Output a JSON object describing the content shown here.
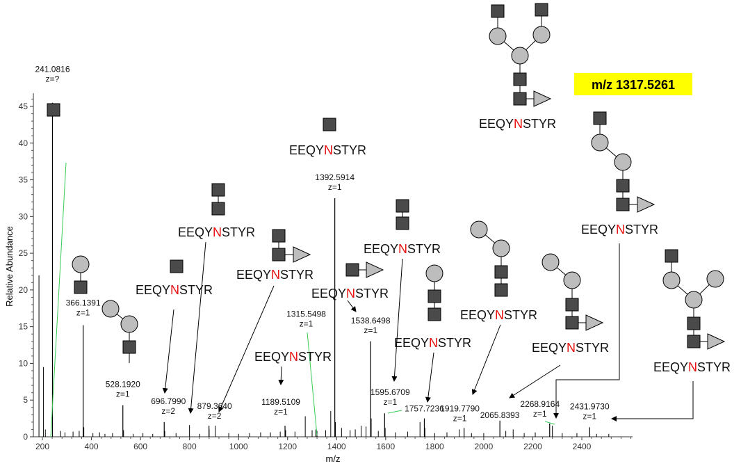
{
  "highlight": {
    "text": "m/z 1317.5261",
    "background": "#ffff00"
  },
  "glycopeptide": {
    "prefix": "EEQY",
    "site": "N",
    "suffix": "STYR",
    "site_color": "#e81010"
  },
  "glycan_symbols": {
    "square": "HexNAc",
    "circle": "Hex",
    "triangle": "Fuc",
    "square_color": "#4a4a4a",
    "circle_color": "#bdbdbd",
    "triangle_color": "#bdbdbd"
  },
  "chart_data": {
    "type": "bar",
    "title": "",
    "xlabel": "m/z",
    "ylabel": "Relative Abundance",
    "xlim": [
      175,
      2600
    ],
    "ylim": [
      0,
      47
    ],
    "xticks": [
      200,
      400,
      600,
      800,
      1000,
      1200,
      1400,
      1600,
      1800,
      2000,
      2200,
      2400
    ],
    "yticks": [
      0,
      5,
      10,
      15,
      20,
      25,
      30,
      35,
      40,
      45
    ],
    "labeled_peaks": [
      {
        "mz": 241.0816,
        "value": 45.5,
        "label": "241.0816",
        "charge": "z=?"
      },
      {
        "mz": 366.1391,
        "value": 15.2,
        "label": "366.1391",
        "charge": "z=1"
      },
      {
        "mz": 528.192,
        "value": 4.3,
        "label": "528.1920",
        "charge": "z=1"
      },
      {
        "mz": 696.799,
        "value": 2.0,
        "label": "696.7990",
        "charge": "z=2"
      },
      {
        "mz": 879.364,
        "value": 1.5,
        "label": "879.3640",
        "charge": "z=2"
      },
      {
        "mz": 1189.5109,
        "value": 1.5,
        "label": "1189.5109",
        "charge": "z=1"
      },
      {
        "mz": 1315.5498,
        "value": 1.0,
        "label": "1315.5498",
        "charge": "z=1"
      },
      {
        "mz": 1392.5914,
        "value": 32.5,
        "label": "1392.5914",
        "charge": "z=1"
      },
      {
        "mz": 1538.6498,
        "value": 13.0,
        "label": "1538.6498",
        "charge": "z=1"
      },
      {
        "mz": 1595.6709,
        "value": 3.2,
        "label": "1595.6709",
        "charge": "z=1"
      },
      {
        "mz": 1757.7236,
        "value": 2.5,
        "label": "1757.7236",
        "charge": ""
      },
      {
        "mz": 1919.779,
        "value": 1.2,
        "label": "1919.7790",
        "charge": "z=1"
      },
      {
        "mz": 2065.8393,
        "value": 2.2,
        "label": "2065.8393",
        "charge": ""
      },
      {
        "mz": 2268.9164,
        "value": 1.8,
        "label": "2268.9164",
        "charge": "z=1"
      },
      {
        "mz": 2431.973,
        "value": 1.3,
        "label": "2431.9730",
        "charge": "z=1"
      }
    ],
    "minor_peaks": [
      {
        "mz": 186,
        "value": 22
      },
      {
        "mz": 204,
        "value": 9.5
      },
      {
        "mz": 212,
        "value": 1.0
      },
      {
        "mz": 274,
        "value": 0.8
      },
      {
        "mz": 292,
        "value": 0.6
      },
      {
        "mz": 325,
        "value": 0.7
      },
      {
        "mz": 350,
        "value": 0.8
      },
      {
        "mz": 369,
        "value": 1.3
      },
      {
        "mz": 406,
        "value": 0.5
      },
      {
        "mz": 433,
        "value": 0.6
      },
      {
        "mz": 455,
        "value": 0.4
      },
      {
        "mz": 486,
        "value": 0.5
      },
      {
        "mz": 531,
        "value": 0.9
      },
      {
        "mz": 570,
        "value": 0.4
      },
      {
        "mz": 610,
        "value": 0.5
      },
      {
        "mz": 650,
        "value": 0.4
      },
      {
        "mz": 699,
        "value": 0.8
      },
      {
        "mz": 745,
        "value": 0.5
      },
      {
        "mz": 800,
        "value": 1.6
      },
      {
        "mz": 842,
        "value": 0.4
      },
      {
        "mz": 880,
        "value": 1.0
      },
      {
        "mz": 905,
        "value": 1.5
      },
      {
        "mz": 960,
        "value": 0.5
      },
      {
        "mz": 1000,
        "value": 0.4
      },
      {
        "mz": 1045,
        "value": 0.5
      },
      {
        "mz": 1090,
        "value": 0.6
      },
      {
        "mz": 1130,
        "value": 0.6
      },
      {
        "mz": 1170,
        "value": 0.7
      },
      {
        "mz": 1192,
        "value": 0.9
      },
      {
        "mz": 1230,
        "value": 0.7
      },
      {
        "mz": 1272,
        "value": 2.8
      },
      {
        "mz": 1300,
        "value": 0.9
      },
      {
        "mz": 1320,
        "value": 0.8
      },
      {
        "mz": 1355,
        "value": 0.9
      },
      {
        "mz": 1376,
        "value": 3.5
      },
      {
        "mz": 1395,
        "value": 2.0
      },
      {
        "mz": 1420,
        "value": 1.2
      },
      {
        "mz": 1455,
        "value": 0.9
      },
      {
        "mz": 1476,
        "value": 1.0
      },
      {
        "mz": 1500,
        "value": 1.5
      },
      {
        "mz": 1520,
        "value": 1.4
      },
      {
        "mz": 1541,
        "value": 2.5
      },
      {
        "mz": 1570,
        "value": 0.8
      },
      {
        "mz": 1598,
        "value": 1.2
      },
      {
        "mz": 1640,
        "value": 0.6
      },
      {
        "mz": 1690,
        "value": 0.7
      },
      {
        "mz": 1740,
        "value": 2.0
      },
      {
        "mz": 1760,
        "value": 1.2
      },
      {
        "mz": 1800,
        "value": 0.5
      },
      {
        "mz": 1850,
        "value": 0.6
      },
      {
        "mz": 1900,
        "value": 1.0
      },
      {
        "mz": 1950,
        "value": 0.5
      },
      {
        "mz": 2000,
        "value": 0.5
      },
      {
        "mz": 2090,
        "value": 0.8
      },
      {
        "mz": 2120,
        "value": 1.0
      },
      {
        "mz": 2165,
        "value": 0.5
      },
      {
        "mz": 2210,
        "value": 0.6
      },
      {
        "mz": 2280,
        "value": 1.5
      },
      {
        "mz": 2320,
        "value": 0.5
      },
      {
        "mz": 2380,
        "value": 0.5
      },
      {
        "mz": 2460,
        "value": 0.4
      },
      {
        "mz": 2510,
        "value": 0.4
      }
    ]
  }
}
